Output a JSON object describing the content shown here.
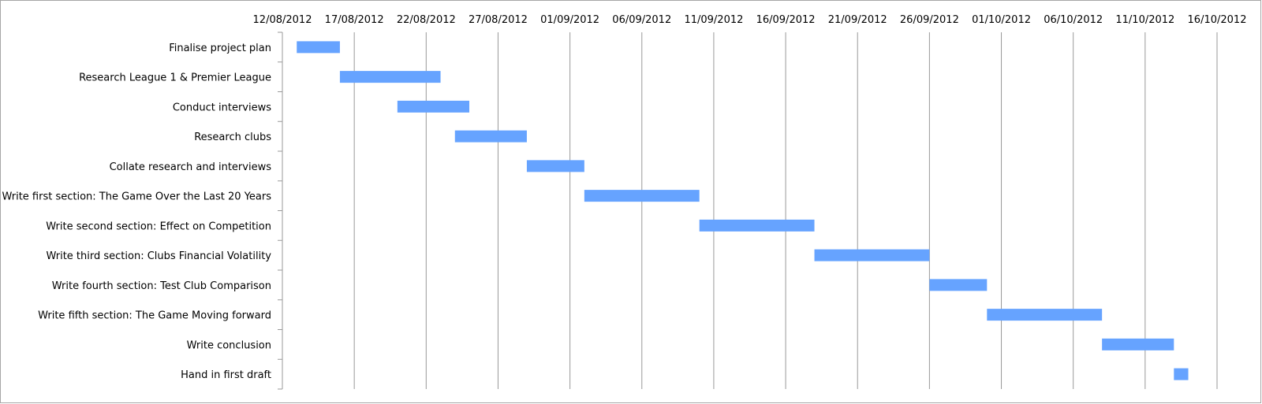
{
  "chart_data": {
    "type": "bar",
    "orientation": "horizontal-gantt",
    "title": "",
    "xlabel": "",
    "ylabel": "",
    "xlim": [
      "2012-08-12",
      "2012-10-16"
    ],
    "grid": true,
    "bar_color": "#66A3FF",
    "gridline_color": "#999999",
    "x_ticks": [
      "12/08/2012",
      "17/08/2012",
      "22/08/2012",
      "27/08/2012",
      "01/09/2012",
      "06/09/2012",
      "11/09/2012",
      "16/09/2012",
      "21/09/2012",
      "26/09/2012",
      "01/10/2012",
      "06/10/2012",
      "11/10/2012",
      "16/10/2012"
    ],
    "tasks": [
      {
        "label": "Finalise project plan",
        "start": "2012-08-13",
        "end": "2012-08-16"
      },
      {
        "label": "Research League 1 & Premier League",
        "start": "2012-08-16",
        "end": "2012-08-23"
      },
      {
        "label": "Conduct interviews",
        "start": "2012-08-20",
        "end": "2012-08-25"
      },
      {
        "label": "Research clubs",
        "start": "2012-08-24",
        "end": "2012-08-29"
      },
      {
        "label": "Collate research and interviews",
        "start": "2012-08-29",
        "end": "2012-09-02"
      },
      {
        "label": "Write first section: The Game Over the Last 20 Years",
        "start": "2012-09-02",
        "end": "2012-09-10"
      },
      {
        "label": "Write second section: Effect on Competition",
        "start": "2012-09-10",
        "end": "2012-09-18"
      },
      {
        "label": "Write third section: Clubs Financial Volatility",
        "start": "2012-09-18",
        "end": "2012-09-26"
      },
      {
        "label": "Write fourth section: Test Club Comparison",
        "start": "2012-09-26",
        "end": "2012-09-30"
      },
      {
        "label": "Write fifth section: The Game Moving forward",
        "start": "2012-09-30",
        "end": "2012-10-08"
      },
      {
        "label": "Write conclusion",
        "start": "2012-10-08",
        "end": "2012-10-13"
      },
      {
        "label": "Hand in first draft",
        "start": "2012-10-13",
        "end": "2012-10-14"
      }
    ]
  }
}
